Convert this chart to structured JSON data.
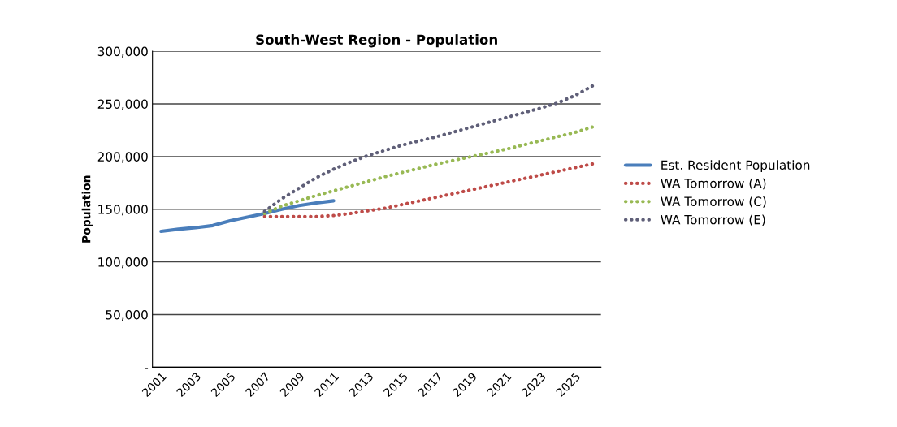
{
  "chart_data": {
    "type": "line",
    "title": "South-West Region - Population",
    "ylabel": "Population",
    "categories": [
      "2001",
      null,
      "2003",
      null,
      "2005",
      null,
      "2007",
      null,
      "2009",
      null,
      "2011",
      null,
      "2013",
      null,
      "2015",
      null,
      "2017",
      null,
      "2019",
      null,
      "2021",
      null,
      "2023",
      null,
      "2025",
      null
    ],
    "series": [
      {
        "name": "Est. Resident Population",
        "color": "#4a7ebb",
        "line_style": "solid",
        "values": [
          129000,
          131000,
          132500,
          134500,
          139000,
          142500,
          146000,
          150000,
          153500,
          156000,
          158000,
          null,
          null,
          null,
          null,
          null,
          null,
          null,
          null,
          null,
          null,
          null,
          null,
          null,
          null,
          null
        ]
      },
      {
        "name": "WA Tomorrow (A)",
        "color": "#be4b48",
        "line_style": "dotted",
        "values": [
          null,
          null,
          null,
          null,
          null,
          null,
          143000,
          143000,
          143000,
          143000,
          144000,
          146000,
          148500,
          151000,
          154500,
          158000,
          161500,
          165000,
          168500,
          172000,
          175500,
          179000,
          182500,
          186000,
          189500,
          193000
        ]
      },
      {
        "name": "WA Tomorrow (C)",
        "color": "#98b954",
        "line_style": "dotted",
        "values": [
          null,
          null,
          null,
          null,
          null,
          null,
          146000,
          153000,
          158000,
          163000,
          167500,
          172000,
          176500,
          181000,
          185000,
          189000,
          193000,
          196500,
          200000,
          203500,
          207000,
          211000,
          215000,
          219000,
          223000,
          228000
        ]
      },
      {
        "name": "WA Tomorrow (E)",
        "color": "#5f5f78",
        "line_style": "dotted",
        "values": [
          null,
          null,
          null,
          null,
          null,
          null,
          148000,
          160000,
          170000,
          180000,
          188000,
          195000,
          201000,
          206000,
          211000,
          215000,
          219000,
          223500,
          228000,
          232500,
          237000,
          241500,
          246000,
          251000,
          258000,
          267000
        ]
      }
    ],
    "ylim": [
      0,
      300000
    ],
    "yticks": [
      {
        "value": 0,
        "label": "-"
      },
      {
        "value": 50000,
        "label": "50,000"
      },
      {
        "value": 100000,
        "label": "100,000"
      },
      {
        "value": 150000,
        "label": "150,000"
      },
      {
        "value": 200000,
        "label": "200,000"
      },
      {
        "value": 250000,
        "label": "250,000"
      },
      {
        "value": 300000,
        "label": "300,000"
      }
    ],
    "grid": "y",
    "legend": "right"
  }
}
